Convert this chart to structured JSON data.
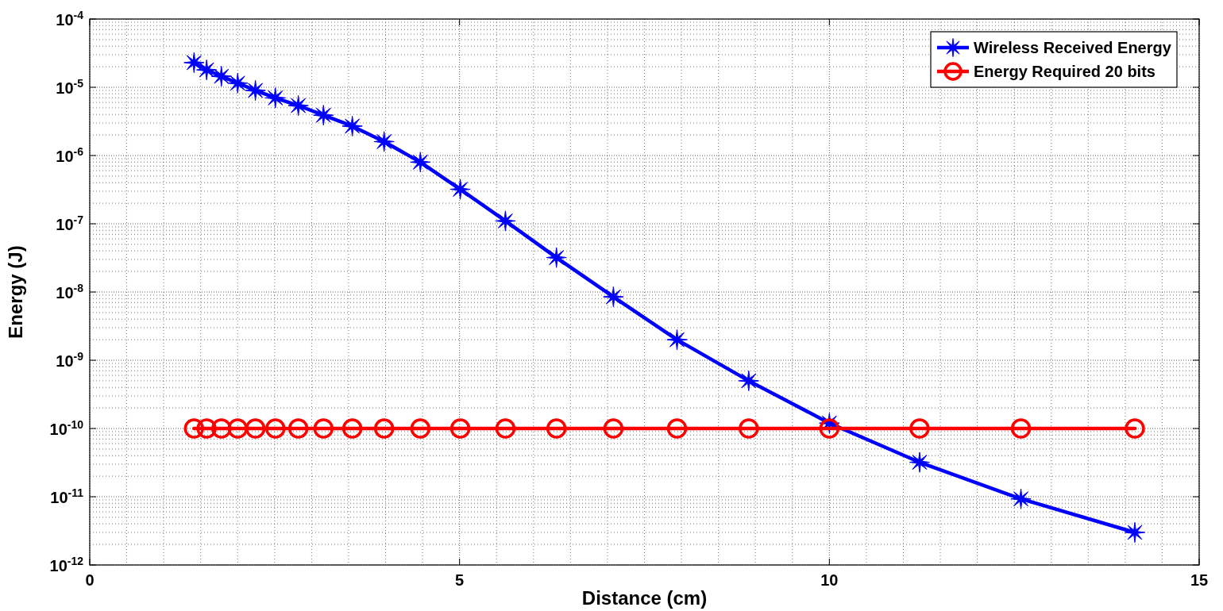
{
  "chart_data": {
    "type": "line",
    "xlabel": "Distance (cm)",
    "ylabel": "Energy (J)",
    "x": [
      1.41,
      1.58,
      1.78,
      2.0,
      2.24,
      2.51,
      2.82,
      3.16,
      3.55,
      3.98,
      4.47,
      5.01,
      5.62,
      6.31,
      7.08,
      7.94,
      8.91,
      10.0,
      11.22,
      12.59,
      14.13
    ],
    "series": [
      {
        "name": "Wireless Received Energy",
        "color": "#0000ff",
        "marker": "star",
        "values": [
          2.3e-05,
          1.8e-05,
          1.45e-05,
          1.15e-05,
          9e-06,
          7e-06,
          5.4e-06,
          3.9e-06,
          2.7e-06,
          1.6e-06,
          8e-07,
          3.2e-07,
          1.1e-07,
          3.2e-08,
          8.5e-09,
          2e-09,
          5e-10,
          1.2e-10,
          3.2e-11,
          9.3e-12,
          3e-12
        ]
      },
      {
        "name": "Energy Required 20 bits",
        "color": "#ff0000",
        "marker": "circle",
        "values": [
          1e-10,
          1e-10,
          1e-10,
          1e-10,
          1e-10,
          1e-10,
          1e-10,
          1e-10,
          1e-10,
          1e-10,
          1e-10,
          1e-10,
          1e-10,
          1e-10,
          1e-10,
          1e-10,
          1e-10,
          1e-10,
          1e-10,
          1e-10,
          1e-10
        ]
      }
    ],
    "xlim": [
      0,
      15
    ],
    "xticks": [
      0,
      5,
      10,
      15
    ],
    "ylim": [
      1e-12,
      0.0001
    ],
    "yticks": [
      {
        "value": 1e-12,
        "label": "10$^{-12}$"
      },
      {
        "value": 1e-11,
        "label": "10$^{-11}$"
      },
      {
        "value": 1e-10,
        "label": "10$^{-10}$"
      },
      {
        "value": 1e-09,
        "label": "10$^{-9}$"
      },
      {
        "value": 1e-08,
        "label": "10$^{-8}$"
      },
      {
        "value": 1e-07,
        "label": "10$^{-7}$"
      },
      {
        "value": 1e-06,
        "label": "10$^{-6}$"
      },
      {
        "value": 1e-05,
        "label": "10$^{-5}$"
      },
      {
        "value": 0.0001,
        "label": "10$^{-4}$"
      }
    ],
    "log": true,
    "grid": true,
    "legend": "top right",
    "line_style": "solid"
  }
}
